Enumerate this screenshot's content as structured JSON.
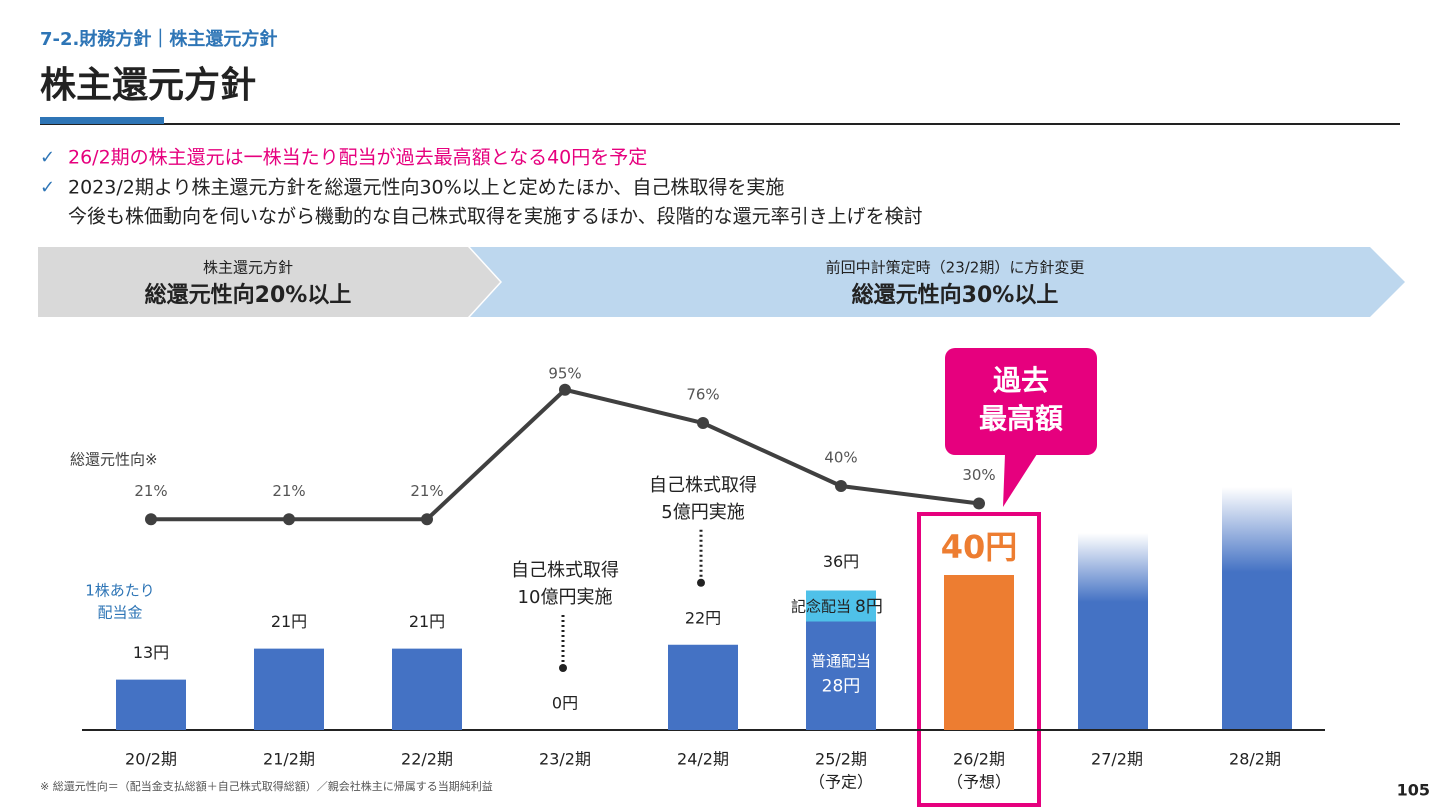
{
  "header": {
    "section": "7-2.財務方針｜株主還元方針",
    "title": "株主還元方針"
  },
  "bullets": [
    {
      "mark": "✓",
      "text": "26/2期の株主還元は一株当たり配当が過去最高額となる40円を予定"
    },
    {
      "mark": "✓",
      "text": "2023/2期より株主還元方針を総還元性向30%以上と定めたほか、自己株取得を実施"
    },
    {
      "text": "今後も株価動向を伺いながら機動的な自己株式取得を実施するほか、段階的な還元率引き上げを検討"
    }
  ],
  "banner": {
    "left": {
      "caption": "株主還元方針",
      "policy": "総還元性向20%以上"
    },
    "right": {
      "caption": "前回中計策定時（23/2期）に方針変更",
      "policy": "総還元性向30%以上"
    }
  },
  "chart_data": {
    "type": "bar",
    "categories": [
      "20/2期",
      "21/2期",
      "22/2期",
      "23/2期",
      "24/2期",
      "25/2期",
      "26/2期",
      "27/2期",
      "28/2期"
    ],
    "category_notes": [
      null,
      null,
      null,
      null,
      null,
      "（予定）",
      "（予想）",
      null,
      null
    ],
    "ylim": [
      0,
      100
    ],
    "y2lim": [
      0,
      100
    ],
    "y_label": [
      "1株あたり",
      "配当金"
    ],
    "series": [
      {
        "name": "普通配当",
        "color": "#4472c4",
        "colors": [
          "#4472c4",
          "#4472c4",
          "#4472c4",
          "#4472c4",
          "#4472c4",
          "#4472c4",
          "#ed7d31",
          null,
          null
        ],
        "values": [
          13,
          21,
          21,
          0,
          22,
          28,
          40,
          null,
          null
        ],
        "value_labels": [
          "13円",
          "21円",
          "21円",
          "0円",
          "22円",
          "28円",
          "40円",
          null,
          null
        ]
      },
      {
        "name": "記念配当",
        "color": "#4fc1e9",
        "values": [
          null,
          null,
          null,
          null,
          null,
          8,
          null,
          null,
          null
        ],
        "value_labels": [
          null,
          null,
          null,
          null,
          null,
          "8円",
          null,
          null,
          null
        ]
      },
      {
        "name": "総還元性向※",
        "type": "line",
        "axis": "y2",
        "color": "#404040",
        "values": [
          21,
          21,
          21,
          95,
          76,
          40,
          30,
          null,
          null
        ],
        "value_labels": [
          "21%",
          "21%",
          "21%",
          "95%",
          "76%",
          "40%",
          "30%",
          null,
          null
        ]
      }
    ],
    "total_labels": [
      null,
      null,
      null,
      null,
      null,
      "36円",
      null,
      null,
      null
    ],
    "annotations": [
      null,
      null,
      null,
      [
        "自己株式取得",
        "10億円実施"
      ],
      [
        "自己株式取得",
        "5億円実施"
      ],
      null,
      null,
      null,
      null
    ],
    "callout": [
      "過去",
      "最高額"
    ]
  },
  "footnote": "※ 総還元性向＝（配当金支払総額＋自己株式取得総額）／親会社株主に帰属する当期純利益",
  "page_number": "105"
}
